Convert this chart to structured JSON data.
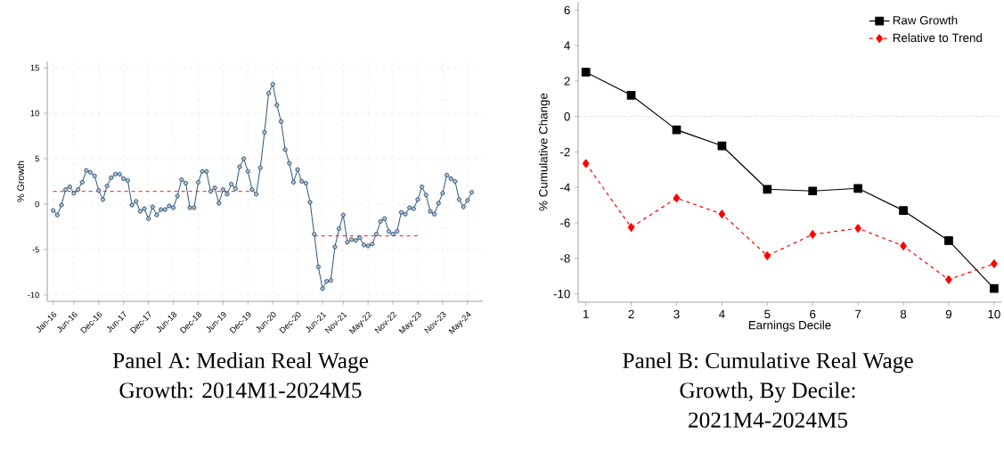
{
  "chart_data": [
    {
      "type": "line",
      "title": "Panel A: Median Real Wage Growth: 2014M1-2024M5",
      "ylabel": "% Growth",
      "x": [
        "2016-01",
        "2016-02",
        "2016-03",
        "2016-04",
        "2016-05",
        "2016-06",
        "2016-07",
        "2016-08",
        "2016-09",
        "2016-10",
        "2016-11",
        "2016-12",
        "2017-01",
        "2017-02",
        "2017-03",
        "2017-04",
        "2017-05",
        "2017-06",
        "2017-07",
        "2017-08",
        "2017-09",
        "2017-10",
        "2017-11",
        "2017-12",
        "2018-01",
        "2018-02",
        "2018-03",
        "2018-04",
        "2018-05",
        "2018-06",
        "2018-07",
        "2018-08",
        "2018-09",
        "2018-10",
        "2018-11",
        "2018-12",
        "2019-01",
        "2019-02",
        "2019-03",
        "2019-04",
        "2019-05",
        "2019-06",
        "2019-07",
        "2019-08",
        "2019-09",
        "2019-10",
        "2019-11",
        "2019-12",
        "2020-01",
        "2020-02",
        "2020-03",
        "2020-04",
        "2020-05",
        "2020-06",
        "2020-07",
        "2020-08",
        "2020-09",
        "2020-10",
        "2020-11",
        "2020-12",
        "2021-01",
        "2021-02",
        "2021-03",
        "2021-04",
        "2021-05",
        "2021-06",
        "2021-07",
        "2021-08",
        "2021-09",
        "2021-10",
        "2021-11",
        "2021-12",
        "2022-01",
        "2022-02",
        "2022-03",
        "2022-04",
        "2022-05",
        "2022-06",
        "2022-07",
        "2022-08",
        "2022-09",
        "2022-10",
        "2022-11",
        "2022-12",
        "2023-01",
        "2023-02",
        "2023-03",
        "2023-04",
        "2023-05",
        "2023-06",
        "2023-07",
        "2023-08",
        "2023-09",
        "2023-10",
        "2023-11",
        "2023-12",
        "2024-01",
        "2024-02",
        "2024-03",
        "2024-04",
        "2024-05",
        "2024-06"
      ],
      "series": [
        {
          "color": "#1a476f",
          "marker": "circle",
          "line_style": "solid",
          "values": [
            -0.7,
            -1.2,
            -0.1,
            1.6,
            1.9,
            1.2,
            1.6,
            2.4,
            3.7,
            3.5,
            3.1,
            1.5,
            0.5,
            2.0,
            2.9,
            3.3,
            3.3,
            2.8,
            2.6,
            -0.1,
            0.3,
            -0.8,
            -0.5,
            -1.6,
            -0.3,
            -1.2,
            -0.6,
            -0.6,
            -0.2,
            -0.4,
            0.9,
            2.7,
            2.3,
            -0.4,
            -0.4,
            2.4,
            3.6,
            3.6,
            1.4,
            1.8,
            0.1,
            1.6,
            1.1,
            2.2,
            1.7,
            4.1,
            5.0,
            3.6,
            1.6,
            1.1,
            4.0,
            7.9,
            12.2,
            13.2,
            10.9,
            9.1,
            6.0,
            4.5,
            2.4,
            3.8,
            2.5,
            2.3,
            0.2,
            -3.3,
            -6.9,
            -9.3,
            -8.5,
            -8.4,
            -4.7,
            -2.7,
            -1.2,
            -4.2,
            -3.9,
            -4.0,
            -3.7,
            -4.5,
            -4.6,
            -4.4,
            -3.3,
            -1.9,
            -1.6,
            -3.0,
            -3.3,
            -3.0,
            -0.9,
            -1.1,
            -0.4,
            -0.5,
            0.5,
            1.9,
            1.0,
            -0.8,
            -1.1,
            0.1,
            1.2,
            3.2,
            2.8,
            2.5,
            0.5,
            -0.3,
            0.4,
            1.3
          ]
        },
        {
          "type": "line",
          "color": "#ff0000",
          "marker": "none",
          "line_style": "dashed",
          "x": [
            "2016-01",
            "2020-01"
          ],
          "values": [
            1.4,
            1.4
          ]
        },
        {
          "type": "line",
          "color": "#ff0000",
          "marker": "none",
          "line_style": "dashed",
          "x": [
            "2021-04",
            "2023-05"
          ],
          "values": [
            -3.5,
            -3.5
          ]
        }
      ],
      "xlim": [
        "2015-11-18",
        "2024-08-22"
      ],
      "ylim": [
        -10.7,
        15.7
      ],
      "xticks": [
        {
          "value": "2016-01",
          "label": "Jan-16"
        },
        {
          "value": "2016-06",
          "label": "Jun-16"
        },
        {
          "value": "2016-12",
          "label": "Dec-16"
        },
        {
          "value": "2017-06",
          "label": "Jun-17"
        },
        {
          "value": "2017-12",
          "label": "Dec-17"
        },
        {
          "value": "2018-06",
          "label": "Jun-18"
        },
        {
          "value": "2018-12",
          "label": "Dec-18"
        },
        {
          "value": "2019-06",
          "label": "Jun-19"
        },
        {
          "value": "2019-12",
          "label": "Dec-19"
        },
        {
          "value": "2020-06",
          "label": "Jun-20"
        },
        {
          "value": "2020-12",
          "label": "Dec-20"
        },
        {
          "value": "2021-06",
          "label": "Jun-21"
        },
        {
          "value": "2021-11",
          "label": "Nov-21"
        },
        {
          "value": "2022-05",
          "label": "May-22"
        },
        {
          "value": "2022-11",
          "label": "Nov-22"
        },
        {
          "value": "2023-05",
          "label": "May-23"
        },
        {
          "value": "2023-11",
          "label": "Nov-23"
        },
        {
          "value": "2024-05",
          "label": "May-24"
        }
      ],
      "yticks": [
        -10,
        -5,
        0,
        5,
        10,
        15
      ],
      "grid": true
    },
    {
      "type": "line",
      "title": "Panel B: Cumulative Real Wage Growth, By Decile: 2021M4-2024M5",
      "xlabel": "Earnings Decile",
      "ylabel": "% Cumulative Change",
      "x": [
        1,
        2,
        3,
        4,
        5,
        6,
        7,
        8,
        9,
        10
      ],
      "series": [
        {
          "name": "Raw Growth",
          "color": "#000000",
          "marker": "square",
          "line_style": "solid",
          "values": [
            2.5,
            1.2,
            -0.75,
            -1.65,
            -4.1,
            -4.2,
            -4.05,
            -5.3,
            -7.0,
            -9.7
          ]
        },
        {
          "name": "Relative to Trend",
          "color": "#ff0000",
          "marker": "diamond",
          "line_style": "dashed",
          "values": [
            -2.65,
            -6.25,
            -4.6,
            -5.5,
            -7.85,
            -6.65,
            -6.3,
            -7.3,
            -9.2,
            -8.3
          ]
        }
      ],
      "xlim": [
        0.83,
        10.16
      ],
      "ylim": [
        -10.47,
        6.47
      ],
      "xticks": [
        1,
        2,
        3,
        4,
        5,
        6,
        7,
        8,
        9,
        10
      ],
      "yticks": [
        -10,
        -8,
        -6,
        -4,
        -2,
        0,
        2,
        4,
        6
      ],
      "ref_lines": [
        {
          "axis": "y",
          "value": 0,
          "color": "#999999",
          "line_style": "dotted"
        }
      ],
      "legend": "top right"
    }
  ]
}
